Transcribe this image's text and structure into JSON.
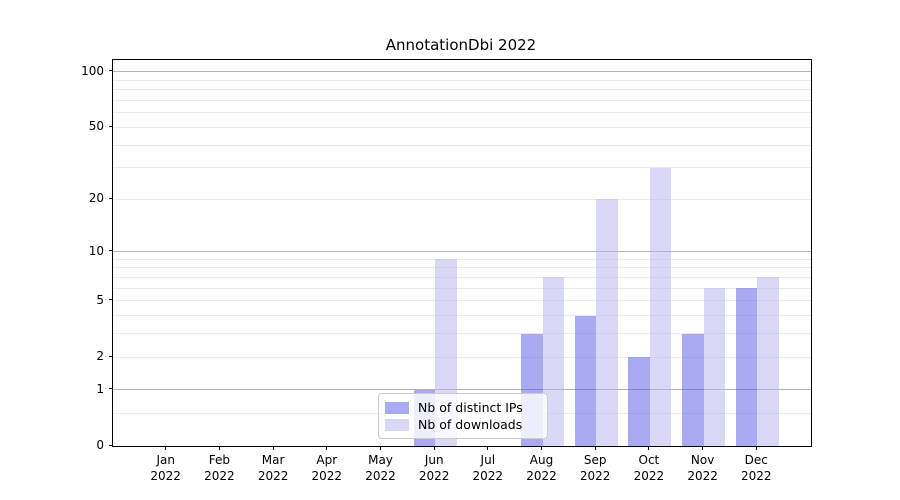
{
  "chart_data": {
    "type": "bar",
    "title": "AnnotationDbi 2022",
    "categories": [
      "Jan",
      "Feb",
      "Mar",
      "Apr",
      "May",
      "Jun",
      "Jul",
      "Aug",
      "Sep",
      "Oct",
      "Nov",
      "Dec"
    ],
    "category_year": "2022",
    "series": [
      {
        "name": "Nb of distinct IPs",
        "color": "rgba(85,85,230,0.5)",
        "values": [
          0,
          0,
          0,
          0,
          0,
          1,
          0,
          3,
          4,
          2,
          3,
          6
        ]
      },
      {
        "name": "Nb of downloads",
        "color": "rgba(180,180,240,0.5)",
        "values": [
          0,
          0,
          0,
          0,
          0,
          9,
          0,
          7,
          20,
          30,
          6,
          7
        ]
      }
    ],
    "yscale": "log1p",
    "ylim": [
      0,
      116
    ],
    "y_ticks": [
      0,
      1,
      2,
      5,
      10,
      20,
      50,
      100
    ],
    "grid_major_values": [
      1,
      10,
      100
    ],
    "grid_minor_values": [
      0.5,
      2,
      3,
      4,
      5,
      6,
      7,
      8,
      9,
      20,
      30,
      40,
      50,
      60,
      70,
      80,
      90
    ],
    "grid": true,
    "legend_position": "lower center"
  },
  "colors": {
    "axes": "#000000",
    "grid_major": "#b3b3b3",
    "grid_minor": "#ebebeb",
    "background": "#ffffff"
  }
}
